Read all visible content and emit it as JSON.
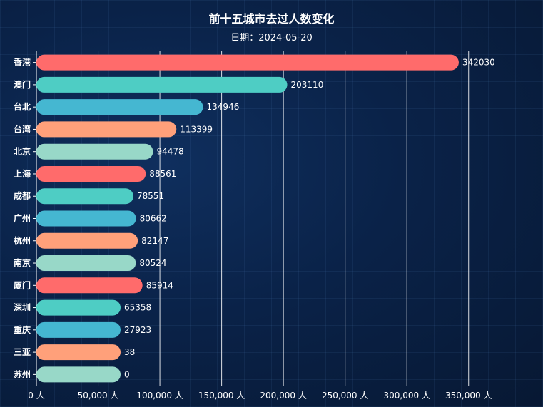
{
  "chart_data": {
    "type": "bar",
    "orientation": "horizontal",
    "title": "前十五城市去过人数变化",
    "subtitle": "日期：2024-05-20",
    "categories": [
      "香港",
      "澳门",
      "台北",
      "台湾",
      "北京",
      "上海",
      "成都",
      "广州",
      "杭州",
      "南京",
      "厦门",
      "深圳",
      "重庆",
      "三亚",
      "苏州"
    ],
    "values": [
      342030,
      203110,
      134946,
      113399,
      94478,
      88561,
      78551,
      80662,
      82147,
      80524,
      85914,
      65358,
      27923,
      38,
      0
    ],
    "colors": [
      "#ff6b6b",
      "#4ecdc4",
      "#45b7d1",
      "#ffa07a",
      "#98d8c8"
    ],
    "xlim": [
      0,
      375000
    ],
    "xticks": [
      0,
      50000,
      100000,
      150000,
      200000,
      250000,
      300000,
      350000
    ],
    "xtick_labels": [
      "0 人",
      "50,000 人",
      "100,000 人",
      "150,000 人",
      "200,000 人",
      "250,000 人",
      "300,000 人",
      "350,000 人"
    ],
    "grid": true
  }
}
